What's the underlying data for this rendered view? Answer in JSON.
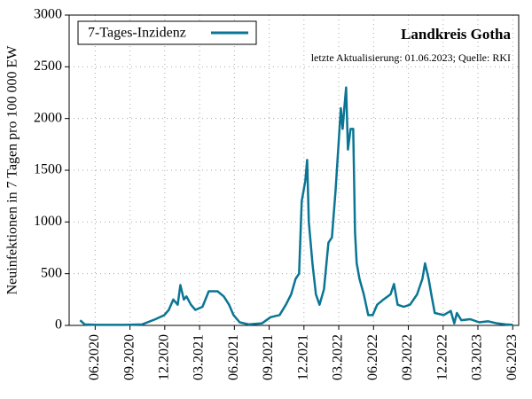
{
  "chart_data": {
    "type": "line",
    "title": "Landkreis Gotha",
    "subtitle": "letzte Aktualisierung: 01.06.2023; Quelle: RKI",
    "ylabel": "Neuinfektionen in 7 Tagen pro 100 000 EW",
    "legend": "upper left",
    "grid": true,
    "xlim": [
      2020.23,
      2023.46
    ],
    "ylim": [
      0,
      3000
    ],
    "yticks": [
      0,
      500,
      1000,
      1500,
      2000,
      2500,
      3000
    ],
    "xticks": [
      {
        "value": 2020.417,
        "label": "06.2020"
      },
      {
        "value": 2020.667,
        "label": "09.2020"
      },
      {
        "value": 2020.917,
        "label": "12.2020"
      },
      {
        "value": 2021.167,
        "label": "03.2021"
      },
      {
        "value": 2021.417,
        "label": "06.2021"
      },
      {
        "value": 2021.667,
        "label": "09.2021"
      },
      {
        "value": 2021.917,
        "label": "12.2021"
      },
      {
        "value": 2022.167,
        "label": "03.2022"
      },
      {
        "value": 2022.417,
        "label": "06.2022"
      },
      {
        "value": 2022.667,
        "label": "09.2022"
      },
      {
        "value": 2022.917,
        "label": "12.2022"
      },
      {
        "value": 2023.167,
        "label": "03.2023"
      },
      {
        "value": 2023.417,
        "label": "06.2023"
      }
    ],
    "x": [
      2020.309,
      2020.341,
      2020.436,
      2020.627,
      2020.755,
      2020.85,
      2020.914,
      2020.946,
      2020.978,
      2021.01,
      2021.029,
      2021.054,
      2021.073,
      2021.105,
      2021.137,
      2021.188,
      2021.233,
      2021.296,
      2021.341,
      2021.379,
      2021.411,
      2021.455,
      2021.519,
      2021.615,
      2021.678,
      2021.742,
      2021.787,
      2021.825,
      2021.857,
      2021.882,
      2021.901,
      2021.927,
      2021.94,
      2021.952,
      2021.978,
      2022.003,
      2022.029,
      2022.061,
      2022.093,
      2022.118,
      2022.144,
      2022.182,
      2022.195,
      2022.207,
      2022.22,
      2022.233,
      2022.252,
      2022.271,
      2022.284,
      2022.296,
      2022.316,
      2022.347,
      2022.379,
      2022.411,
      2022.443,
      2022.488,
      2022.539,
      2022.564,
      2022.59,
      2022.634,
      2022.679,
      2022.73,
      2022.768,
      2022.787,
      2022.813,
      2022.832,
      2022.857,
      2022.921,
      2022.972,
      2022.997,
      2023.016,
      2023.048,
      2023.112,
      2023.176,
      2023.239,
      2023.303,
      2023.367,
      2023.418
    ],
    "series": [
      {
        "name": "7-Tages-Inzidenz",
        "color": "#0a7594",
        "values": [
          50,
          10,
          5,
          5,
          10,
          60,
          100,
          150,
          250,
          200,
          390,
          250,
          280,
          200,
          150,
          180,
          330,
          330,
          280,
          200,
          100,
          30,
          10,
          20,
          80,
          100,
          200,
          300,
          450,
          500,
          1200,
          1400,
          1600,
          1000,
          600,
          300,
          200,
          350,
          800,
          850,
          1300,
          2100,
          1900,
          2100,
          2300,
          1700,
          1900,
          1900,
          900,
          600,
          450,
          300,
          100,
          100,
          200,
          250,
          300,
          400,
          200,
          180,
          200,
          300,
          450,
          600,
          450,
          300,
          120,
          100,
          140,
          20,
          120,
          50,
          60,
          30,
          40,
          20,
          10,
          5
        ]
      }
    ]
  }
}
